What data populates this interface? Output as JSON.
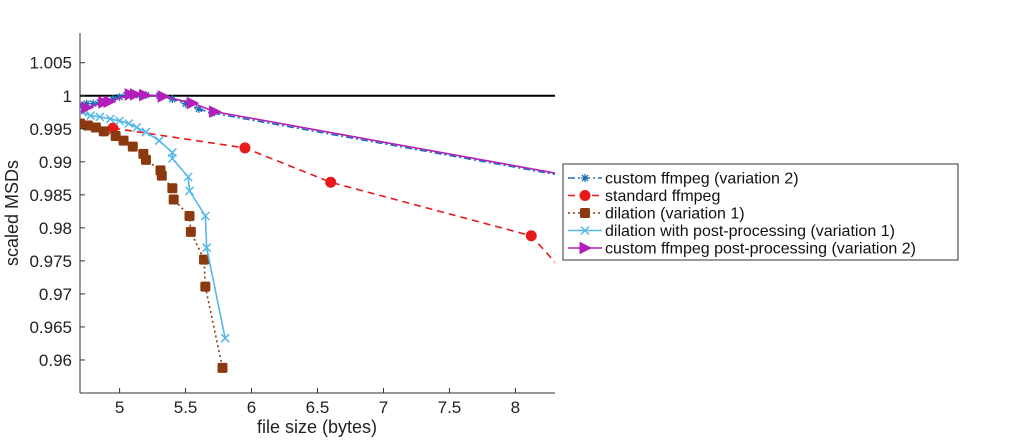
{
  "chart_data": {
    "type": "line",
    "title": "",
    "xlabel": "file size (bytes)",
    "ylabel": "scaled MSDs",
    "xlim": [
      4.7,
      8.3
    ],
    "ylim": [
      0.955,
      1.0095
    ],
    "x_ticks": [
      "5",
      "5.5",
      "6",
      "6.5",
      "7",
      "7.5",
      "8"
    ],
    "y_ticks": [
      "0.96",
      "0.965",
      "0.97",
      "0.975",
      "0.98",
      "0.985",
      "0.99",
      "0.995",
      "1",
      "1.005"
    ],
    "grid": false,
    "legend_position": "right",
    "reference_line": {
      "y": 1,
      "color": "#000000"
    },
    "series": [
      {
        "name": "custom ffmpeg (variation 2)",
        "color": "#1f6fb5",
        "line_style": "dashdot",
        "marker": "asterisk",
        "x": [
          4.72,
          4.75,
          4.8,
          4.85,
          4.9,
          4.95,
          5.0,
          5.05,
          5.1,
          5.15,
          5.2,
          5.3,
          5.4,
          5.5,
          5.6,
          5.7,
          8.3
        ],
        "y": [
          0.9985,
          0.9988,
          0.9988,
          0.999,
          0.9992,
          0.9995,
          0.9998,
          1.0001,
          1.0002,
          1.0001,
          1.0001,
          1.0,
          0.9995,
          0.9988,
          0.998,
          0.9974,
          0.9881
        ]
      },
      {
        "name": "standard ffmpeg",
        "color": "#e8191a",
        "line_style": "dashed",
        "marker": "circle",
        "x": [
          4.95,
          5.95,
          6.6,
          8.12,
          8.3
        ],
        "y": [
          0.9951,
          0.9921,
          0.9869,
          0.9788,
          0.9748
        ]
      },
      {
        "name": "dilation (variation 1)",
        "color": "#8b3a0f",
        "line_style": "dotted",
        "marker": "square",
        "x": [
          4.7,
          4.76,
          4.82,
          4.88,
          4.97,
          5.03,
          5.1,
          5.18,
          5.2,
          5.31,
          5.32,
          5.4,
          5.41,
          5.53,
          5.54,
          5.64,
          5.65,
          5.78
        ],
        "y": [
          0.9958,
          0.9955,
          0.9952,
          0.9946,
          0.9939,
          0.9932,
          0.9923,
          0.9912,
          0.9903,
          0.9887,
          0.9879,
          0.986,
          0.9843,
          0.9818,
          0.9794,
          0.9752,
          0.9711,
          0.9588
        ]
      },
      {
        "name": "dilation with post-processing (variation 1)",
        "color": "#55b7e8",
        "line_style": "solid",
        "marker": "x",
        "x": [
          4.72,
          4.78,
          4.85,
          4.93,
          5.0,
          5.07,
          5.13,
          5.2,
          5.3,
          5.4,
          5.4,
          5.52,
          5.53,
          5.65,
          5.66,
          5.8
        ],
        "y": [
          0.9975,
          0.997,
          0.9968,
          0.9965,
          0.9962,
          0.9958,
          0.9952,
          0.9945,
          0.9932,
          0.9914,
          0.9905,
          0.9877,
          0.9856,
          0.9818,
          0.977,
          0.9633
        ]
      },
      {
        "name": "custom ffmpeg post-processing (variation 2)",
        "color": "#b31fb8",
        "line_style": "solid",
        "marker": "triangle-right",
        "x": [
          4.75,
          4.88,
          4.92,
          5.08,
          5.12,
          5.19,
          5.33,
          5.55,
          5.72,
          8.3
        ],
        "y": [
          0.9982,
          0.999,
          0.9991,
          1.0002,
          1.0002,
          1.0001,
          0.9999,
          0.9989,
          0.9976,
          0.9883
        ]
      }
    ]
  }
}
